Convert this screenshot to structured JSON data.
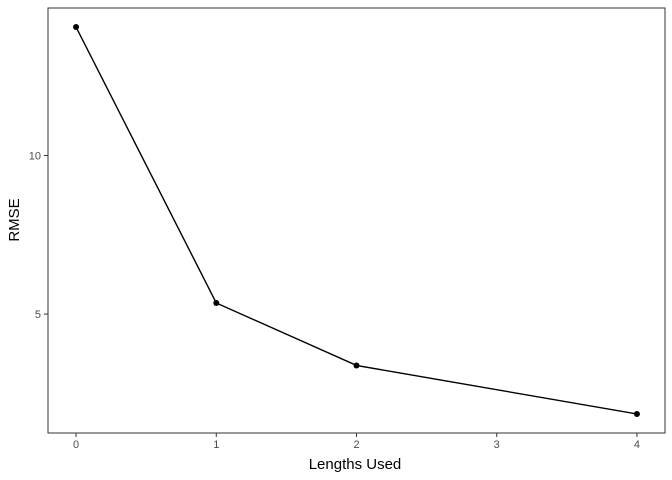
{
  "chart_data": {
    "type": "line",
    "title": "",
    "xlabel": "Lengths Used",
    "ylabel": "RMSE",
    "x": [
      0,
      1,
      2,
      4
    ],
    "series": [
      {
        "values": [
          14.05,
          5.35,
          3.38,
          1.85
        ]
      }
    ],
    "xlim": [
      -0.2,
      4.2
    ],
    "ylim": [
      1.25,
      14.65
    ],
    "xticks": [
      0,
      1,
      2,
      3,
      4
    ],
    "xtick_labels": [
      "0",
      "1",
      "2",
      "3",
      "4"
    ],
    "yticks": [
      5,
      10
    ],
    "ytick_labels": [
      "5",
      "10"
    ],
    "grid": false,
    "legend": "none",
    "colors": {
      "line": "#000000",
      "point": "#000000",
      "panel_border": "#333333",
      "tick_text": "#4d4d4d"
    }
  }
}
